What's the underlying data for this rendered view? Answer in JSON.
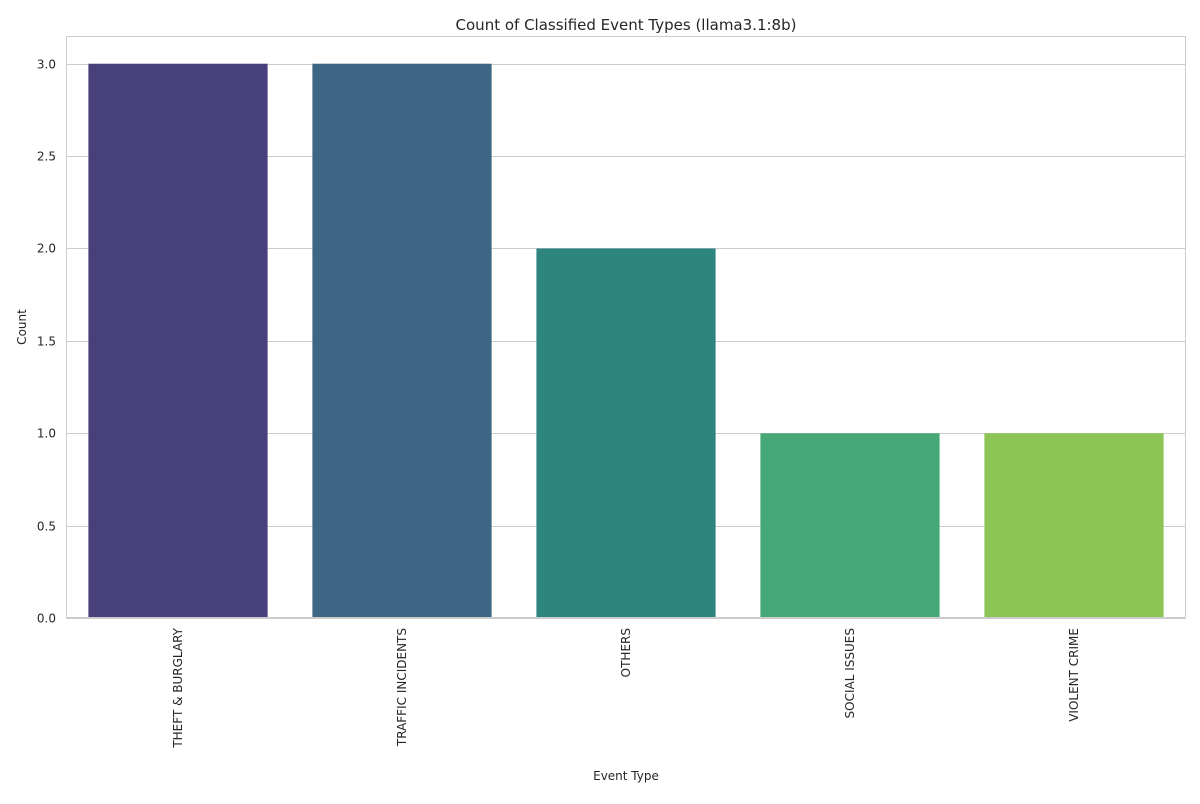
{
  "chart_data": {
    "type": "bar",
    "title": "Count of Classified Event Types (llama3.1:8b)",
    "xlabel": "Event Type",
    "ylabel": "Count",
    "categories": [
      "THEFT & BURGLARY",
      "TRAFFIC INCIDENTS",
      "OTHERS",
      "SOCIAL ISSUES",
      "VIOLENT CRIME"
    ],
    "values": [
      3,
      3,
      2,
      1,
      1
    ],
    "colors": [
      "#48407a",
      "#3c6683",
      "#2e857f",
      "#46a876",
      "#8cc556"
    ],
    "ylim": [
      0,
      3.15
    ],
    "yticks": [
      0.0,
      0.5,
      1.0,
      1.5,
      2.0,
      2.5,
      3.0
    ],
    "ytick_labels": [
      "0.0",
      "0.5",
      "1.0",
      "1.5",
      "2.0",
      "2.5",
      "3.0"
    ],
    "grid": true,
    "grid_axis": "y",
    "legend": "none"
  }
}
